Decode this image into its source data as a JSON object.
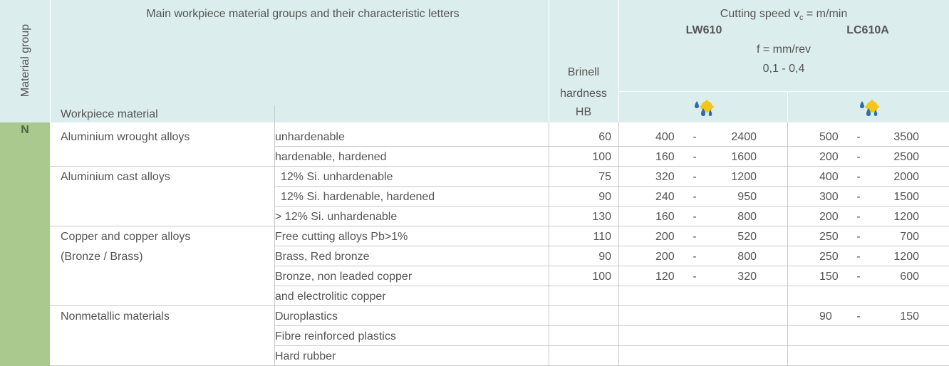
{
  "header": {
    "material_group": "Material group",
    "main_title": "Main workpiece material groups and their characteristic letters",
    "workpiece_material": "Workpiece material",
    "brinell": [
      "Brinell",
      "hardness",
      "HB"
    ],
    "cutting_speed": {
      "prefix": "Cutting speed v",
      "subscript": "c",
      "suffix": " = m/min"
    },
    "grades": [
      "LW610",
      "LC610A"
    ],
    "feed": "f = mm/rev",
    "feed_range": "0,1 - 0,4"
  },
  "group_letter": "N",
  "range_separator": "-",
  "rows": [
    {
      "material": "Aluminium wrought alloys",
      "subtype": "unhardenable",
      "hb": 60,
      "lw610": [
        400,
        2400
      ],
      "lc610a": [
        500,
        3500
      ]
    },
    {
      "subtype": "hardenable, hardened",
      "hb": 100,
      "lw610": [
        160,
        1600
      ],
      "lc610a": [
        200,
        2500
      ]
    },
    {
      "material": "Aluminium cast alloys",
      "subtype": "12% Si. unhardenable",
      "hb": 75,
      "lw610": [
        320,
        1200
      ],
      "lc610a": [
        400,
        2000
      ]
    },
    {
      "subtype": "12% Si. hardenable, hardened",
      "hb": 90,
      "lw610": [
        240,
        950
      ],
      "lc610a": [
        300,
        1500
      ]
    },
    {
      "subtype": "> 12% Si. unhardenable",
      "hb": 130,
      "lw610": [
        160,
        800
      ],
      "lc610a": [
        200,
        1200
      ]
    },
    {
      "material": "Copper and copper alloys",
      "subtype": "Free cutting alloys Pb>1%",
      "hb": 110,
      "lw610": [
        200,
        520
      ],
      "lc610a": [
        250,
        700
      ]
    },
    {
      "material": "(Bronze / Brass)",
      "subtype": "Brass, Red bronze",
      "hb": 90,
      "lw610": [
        200,
        800
      ],
      "lc610a": [
        250,
        1200
      ]
    },
    {
      "subtype": "Bronze, non leaded copper",
      "hb": 100,
      "lw610": [
        120,
        320
      ],
      "lc610a": [
        150,
        600
      ]
    },
    {
      "subtype": "and electrolitic copper"
    },
    {
      "material": "Nonmetallic materials",
      "subtype": "Duroplastics",
      "lc610a": [
        90,
        150
      ]
    },
    {
      "subtype": "Fibre reinforced plastics"
    },
    {
      "subtype": "Hard rubber"
    }
  ]
}
